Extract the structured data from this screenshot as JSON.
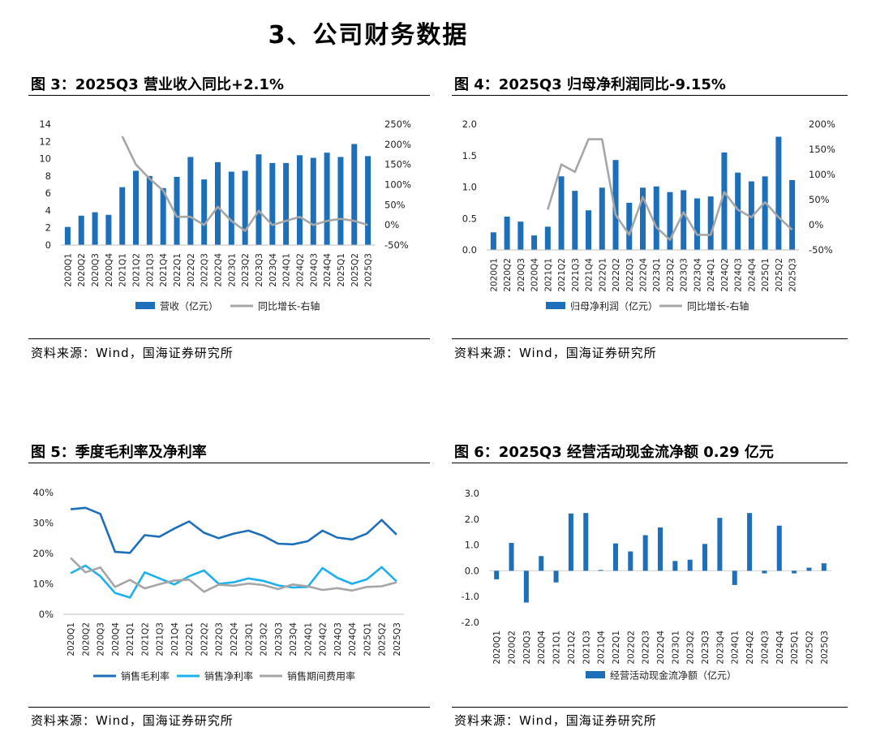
{
  "page": {
    "title": "3、公司财务数据"
  },
  "figures": {
    "fig3": {
      "title": "图 3：2025Q3 营业收入同比+2.1%",
      "source": "资料来源：Wind，国海证券研究所"
    },
    "fig4": {
      "title": "图 4：2025Q3 归母净利润同比-9.15%",
      "source": "资料来源：Wind，国海证券研究所"
    },
    "fig5": {
      "title": "图 5：季度毛利率及净利率",
      "source": "资料来源：Wind，国海证券研究所"
    },
    "fig6": {
      "title": "图 6：2025Q3 经营活动现金流净额 0.29 亿元",
      "source": "资料来源：Wind，国海证券研究所"
    }
  },
  "colors": {
    "bar": "#1C6FB8",
    "line_gray": "#A6A6A6",
    "line_dark_blue": "#1C6FB8",
    "line_light_blue": "#1EB0EC"
  },
  "chart_data": [
    {
      "id": "fig3",
      "type": "bar+line",
      "categories": [
        "2020Q1",
        "2020Q2",
        "2020Q3",
        "2020Q4",
        "2021Q1",
        "2021Q2",
        "2021Q3",
        "2021Q4",
        "2022Q1",
        "2022Q2",
        "2022Q3",
        "2022Q4",
        "2023Q1",
        "2023Q2",
        "2023Q3",
        "2023Q4",
        "2024Q1",
        "2024Q2",
        "2024Q3",
        "2024Q4",
        "2025Q1",
        "2025Q2",
        "2025Q3"
      ],
      "series": [
        {
          "name": "营收（亿元）",
          "kind": "bar",
          "axis": "left",
          "values": [
            2.1,
            3.4,
            3.8,
            3.5,
            6.7,
            8.6,
            8.0,
            6.6,
            7.9,
            10.2,
            7.6,
            9.6,
            8.5,
            8.6,
            10.5,
            9.5,
            9.5,
            10.4,
            10.1,
            10.7,
            10.2,
            11.7,
            10.3
          ]
        },
        {
          "name": "同比增长-右轴",
          "kind": "line",
          "axis": "right",
          "values": [
            null,
            null,
            null,
            null,
            220,
            150,
            115,
            85,
            20,
            20,
            0,
            45,
            10,
            -15,
            35,
            0,
            10,
            20,
            0,
            10,
            15,
            10,
            0
          ]
        }
      ],
      "ylim_left": [
        0,
        14
      ],
      "yticks_left": [
        0,
        2,
        4,
        6,
        8,
        10,
        12,
        14
      ],
      "ylim_right": [
        -50,
        250
      ],
      "yticks_right": [
        "-50%",
        "0%",
        "50%",
        "100%",
        "150%",
        "200%",
        "250%"
      ],
      "legend": "bottom"
    },
    {
      "id": "fig4",
      "type": "bar+line",
      "categories": [
        "2020Q1",
        "2020Q2",
        "2020Q3",
        "2020Q4",
        "2021Q1",
        "2021Q2",
        "2021Q3",
        "2021Q4",
        "2022Q1",
        "2022Q2",
        "2022Q3",
        "2022Q4",
        "2023Q1",
        "2023Q2",
        "2023Q3",
        "2023Q4",
        "2024Q1",
        "2024Q2",
        "2024Q3",
        "2024Q4",
        "2025Q1",
        "2025Q2",
        "2025Q3"
      ],
      "series": [
        {
          "name": "归母净利润（亿元）",
          "kind": "bar",
          "axis": "left",
          "values": [
            0.28,
            0.53,
            0.45,
            0.23,
            0.37,
            1.17,
            0.94,
            0.63,
            0.99,
            1.43,
            0.75,
            0.99,
            1.01,
            0.92,
            0.95,
            0.82,
            0.85,
            1.55,
            1.23,
            1.09,
            1.17,
            1.8,
            1.11
          ]
        },
        {
          "name": "同比增长-右轴",
          "kind": "line",
          "axis": "right",
          "values": [
            null,
            null,
            null,
            null,
            30,
            120,
            105,
            170,
            170,
            20,
            -20,
            55,
            -5,
            -30,
            25,
            -20,
            -20,
            65,
            30,
            15,
            45,
            15,
            -10
          ]
        }
      ],
      "ylim_left": [
        0,
        2.0
      ],
      "yticks_left": [
        "0.0",
        "0.5",
        "1.0",
        "1.5",
        "2.0"
      ],
      "ylim_right": [
        -50,
        200
      ],
      "yticks_right": [
        "-50%",
        "0%",
        "50%",
        "100%",
        "150%",
        "200%"
      ],
      "legend": "bottom"
    },
    {
      "id": "fig5",
      "type": "line",
      "categories": [
        "2020Q1",
        "2020Q2",
        "2020Q3",
        "2020Q4",
        "2021Q1",
        "2021Q2",
        "2021Q3",
        "2021Q4",
        "2022Q1",
        "2022Q2",
        "2022Q3",
        "2022Q4",
        "2023Q1",
        "2023Q2",
        "2023Q3",
        "2023Q4",
        "2024Q1",
        "2024Q2",
        "2024Q3",
        "2024Q4",
        "2025Q1",
        "2025Q2",
        "2025Q3"
      ],
      "series": [
        {
          "name": "销售毛利率",
          "values": [
            34.5,
            35.0,
            33.0,
            20.5,
            20.2,
            26.0,
            25.5,
            28.2,
            30.5,
            26.8,
            25.0,
            26.5,
            27.5,
            25.8,
            23.2,
            23.0,
            24.0,
            27.5,
            25.2,
            24.6,
            26.5,
            31.0,
            26.2
          ]
        },
        {
          "name": "销售净利率",
          "values": [
            13.5,
            16.0,
            12.5,
            7.0,
            5.5,
            13.8,
            11.8,
            9.8,
            12.5,
            14.4,
            10.0,
            10.5,
            11.8,
            11.0,
            9.5,
            8.8,
            9.0,
            15.2,
            12.0,
            10.0,
            11.5,
            15.5,
            10.8
          ]
        },
        {
          "name": "销售期间费用率",
          "values": [
            18.5,
            13.8,
            15.4,
            9.0,
            11.3,
            8.5,
            9.9,
            11.1,
            11.4,
            7.4,
            9.7,
            9.4,
            10.1,
            9.6,
            8.3,
            9.8,
            9.2,
            8.0,
            8.6,
            7.8,
            9.0,
            9.2,
            10.5
          ]
        }
      ],
      "ylim": [
        0,
        40
      ],
      "yticks": [
        "0%",
        "10%",
        "20%",
        "30%",
        "40%"
      ],
      "legend": "bottom"
    },
    {
      "id": "fig6",
      "type": "bar",
      "categories": [
        "2020Q1",
        "2020Q2",
        "2020Q3",
        "2020Q4",
        "2021Q1",
        "2021Q2",
        "2021Q3",
        "2021Q4",
        "2022Q1",
        "2022Q2",
        "2022Q3",
        "2022Q4",
        "2023Q1",
        "2023Q2",
        "2023Q3",
        "2023Q4",
        "2024Q1",
        "2024Q2",
        "2024Q3",
        "2024Q4",
        "2025Q1",
        "2025Q2",
        "2025Q3"
      ],
      "series": [
        {
          "name": "经营活动现金流净额（亿元）",
          "values": [
            -0.33,
            1.08,
            -1.23,
            0.57,
            -0.45,
            2.22,
            2.24,
            0.03,
            1.06,
            0.75,
            1.38,
            1.68,
            0.38,
            0.43,
            1.04,
            2.05,
            -0.55,
            2.24,
            -0.1,
            1.75,
            -0.1,
            0.12,
            0.29
          ]
        }
      ],
      "ylim": [
        -2.0,
        3.0
      ],
      "yticks": [
        "-2.0",
        "-1.0",
        "0.0",
        "1.0",
        "2.0",
        "3.0"
      ],
      "legend": "bottom"
    }
  ]
}
